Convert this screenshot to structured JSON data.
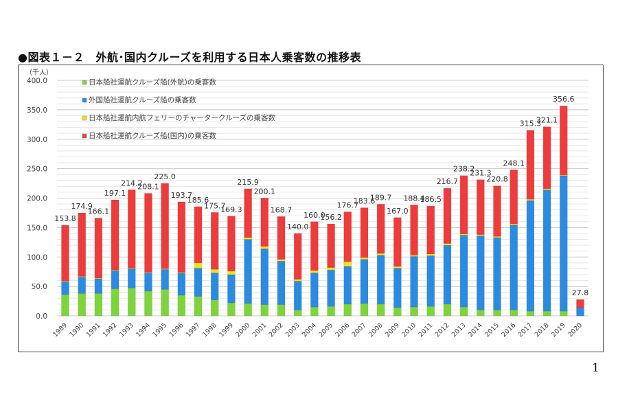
{
  "title": "●図表１－２　外航･国内クルーズを利用する日本人乗客数の推移表",
  "page_number": "1",
  "chart_data": {
    "type": "bar",
    "stacked": true,
    "ylabel": "（千人）",
    "ylim": [
      0,
      400
    ],
    "yticks": [
      "0.0",
      "50.0",
      "100.0",
      "150.0",
      "200.0",
      "250.0",
      "300.0",
      "350.0",
      "400.0"
    ],
    "grid": true,
    "legend_position": "top-left",
    "categories": [
      "1989",
      "1990",
      "1991",
      "1992",
      "1993",
      "1994",
      "1995",
      "1996",
      "1997",
      "1998",
      "1999",
      "2000",
      "2001",
      "2002",
      "2003",
      "2004",
      "2005",
      "2006",
      "2007",
      "2008",
      "2009",
      "2010",
      "2011",
      "2012",
      "2013",
      "2014",
      "2015",
      "2016",
      "2017",
      "2018",
      "2019",
      "2020"
    ],
    "series": [
      {
        "name": "日本船社運航クルーズ船(外航)の乗客数",
        "color": "#7ed43a",
        "values": [
          36,
          38,
          38,
          46,
          47,
          42,
          45,
          35,
          33,
          27,
          22,
          21,
          19,
          19,
          10,
          15,
          16,
          20,
          21,
          20,
          14,
          15,
          16,
          20,
          15,
          10,
          10,
          10,
          8,
          8,
          8,
          0
        ]
      },
      {
        "name": "外国船社運航クルーズ船の乗客数",
        "color": "#2b8be0",
        "values": [
          22,
          28,
          25,
          31,
          33,
          31,
          34,
          38,
          48,
          46,
          48,
          109,
          95,
          74,
          49,
          58,
          62,
          64,
          75,
          83,
          67,
          86,
          86,
          100,
          122,
          126,
          123,
          144,
          188,
          206,
          230,
          14
        ]
      },
      {
        "name": "日本船社運航内航フェリーのチャータークルーズの乗客数",
        "color": "#f2e21c",
        "values": [
          1,
          1,
          1,
          1,
          1,
          1,
          1,
          1,
          9,
          6,
          6,
          3,
          4,
          3,
          3,
          4,
          4,
          8,
          3,
          3,
          3,
          2,
          3,
          3,
          2,
          2,
          2,
          2,
          2,
          2,
          1,
          0
        ]
      },
      {
        "name": "日本船社運航クルーズ船(国内)の乗客数",
        "color": "#ee3b3b",
        "values": [
          94.8,
          107.9,
          102.1,
          119.1,
          133.2,
          134.1,
          145,
          119.7,
          95.6,
          96.7,
          93.3,
          82.9,
          82.1,
          72.7,
          78,
          83,
          74.2,
          84.7,
          84.6,
          83.7,
          83,
          85.4,
          81.5,
          93.7,
          99.2,
          93.3,
          85.8,
          92.1,
          117.3,
          105.1,
          117.6,
          13.8
        ]
      }
    ],
    "totals": [
      "153.8",
      "174.9",
      "166.1",
      "197.1",
      "214.2",
      "208.1",
      "225.0",
      "193.7",
      "185.6",
      "175.7",
      "169.3",
      "215.9",
      "200.1",
      "168.7",
      "140.0",
      "160.0",
      "156.2",
      "176.7",
      "183.6",
      "189.7",
      "167.0",
      "188.4",
      "186.5",
      "216.7",
      "238.2",
      "231.3",
      "220.8",
      "248.1",
      "315.3",
      "321.1",
      "356.6",
      "27.8"
    ]
  }
}
